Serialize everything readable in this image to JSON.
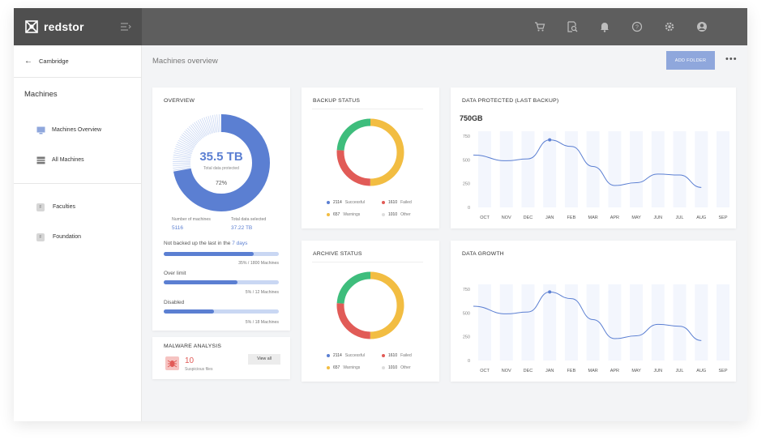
{
  "brand": {
    "name": "redstor"
  },
  "icons": {
    "logo": "redstor-logo-icon",
    "collapse": "menu-collapse-icon",
    "top": [
      "cart-icon",
      "search-document-icon",
      "bell-icon",
      "help-icon",
      "gear-icon",
      "user-icon"
    ]
  },
  "sidebar": {
    "breadcrumb": "Cambridge",
    "section": "Machines",
    "items": [
      {
        "label": "Machines Overview",
        "icon": "monitor-icon"
      },
      {
        "label": "All Machines",
        "icon": "server-icon"
      }
    ],
    "groups": [
      {
        "label": "Faculties",
        "badge": "F"
      },
      {
        "label": "Foundation",
        "badge": "F"
      }
    ]
  },
  "header": {
    "title": "Machines overview",
    "add_folder": "ADD FOLDER",
    "more": "•••"
  },
  "overview": {
    "title": "OVERVIEW",
    "total": "35.5 TB",
    "total_caption": "Total data protected",
    "percent": "72%",
    "percent_value": 72,
    "machines_label": "Number of machines",
    "machines_value": "5116",
    "selected_label": "Total data selected",
    "selected_value": "37.22 TB",
    "not_backed_prefix": "Not backed up the last in the",
    "not_backed_days": "7 days",
    "bars": [
      {
        "label": "",
        "fill": 0.78,
        "caption": "35% / 1800 Machines"
      },
      {
        "label": "Over limit",
        "fill": 0.64,
        "caption": "5% / 12 Machines"
      },
      {
        "label": "Disabled",
        "fill": 0.44,
        "caption": "5% / 18 Machines"
      }
    ]
  },
  "malware": {
    "title": "MALWARE ANALYSIS",
    "count": "10",
    "caption": "Suspicious files",
    "button": "View all"
  },
  "backup": {
    "title": "BACKUP STATUS",
    "legend": [
      {
        "num": "2114",
        "label": "Successful",
        "color": "#5b7fd2"
      },
      {
        "num": "1610",
        "label": "Failed",
        "color": "#e15b57"
      },
      {
        "num": "657",
        "label": "Warnings",
        "color": "#f2bd42"
      },
      {
        "num": "1010",
        "label": "Other",
        "color": "#dddddd"
      }
    ],
    "donut": [
      {
        "value": 50,
        "color": "#f2bd42"
      },
      {
        "value": 26,
        "color": "#e15b57"
      },
      {
        "value": 24,
        "color": "#3ebd7c"
      }
    ]
  },
  "archive": {
    "title": "ARCHIVE STATUS",
    "legend": [
      {
        "num": "2114",
        "label": "Successful",
        "color": "#5b7fd2"
      },
      {
        "num": "1610",
        "label": "Failed",
        "color": "#e15b57"
      },
      {
        "num": "657",
        "label": "Warnings",
        "color": "#f2bd42"
      },
      {
        "num": "1010",
        "label": "Other",
        "color": "#dddddd"
      }
    ],
    "donut": [
      {
        "value": 50,
        "color": "#f2bd42"
      },
      {
        "value": 26,
        "color": "#e15b57"
      },
      {
        "value": 24,
        "color": "#3ebd7c"
      }
    ]
  },
  "chart_data": [
    {
      "type": "line",
      "title": "DATA PROTECTED (LAST BACKUP)",
      "subtitle": "750GB",
      "categories": [
        "OCT",
        "NOV",
        "DEC",
        "JAN",
        "FEB",
        "MAR",
        "APR",
        "MAY",
        "JUN",
        "JUL",
        "AUG",
        "SEP"
      ],
      "values": [
        550,
        490,
        510,
        710,
        640,
        430,
        230,
        260,
        350,
        340,
        210,
        null
      ],
      "highlight_index": 3,
      "yticks": [
        0,
        250,
        500,
        750
      ],
      "ylim": [
        0,
        800
      ],
      "grid": false
    },
    {
      "type": "line",
      "title": "DATA GROWTH",
      "categories": [
        "OCT",
        "NOV",
        "DEC",
        "JAN",
        "FEB",
        "MAR",
        "APR",
        "MAY",
        "JUN",
        "JUL",
        "AUG",
        "SEP"
      ],
      "values": [
        570,
        490,
        510,
        720,
        650,
        430,
        230,
        260,
        380,
        360,
        210,
        null
      ],
      "highlight_index": 3,
      "yticks": [
        0,
        250,
        500,
        750
      ],
      "ylim": [
        0,
        800
      ],
      "grid": false
    }
  ]
}
